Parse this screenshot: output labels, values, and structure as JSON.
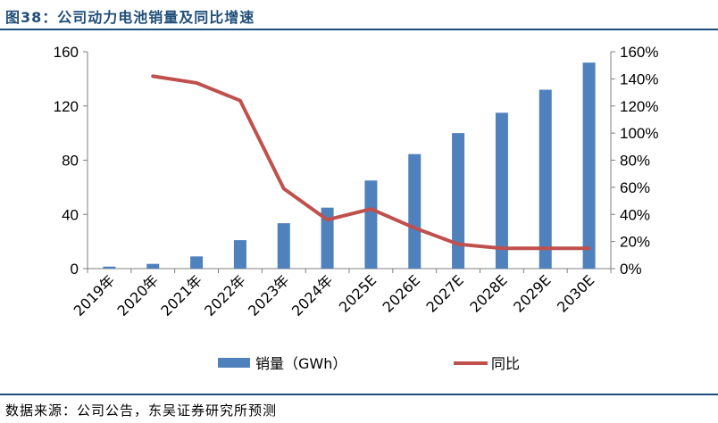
{
  "page": {
    "title": "图38：公司动力电池销量及同比增速",
    "source": "数据来源：公司公告，东吴证券研究所预测"
  },
  "chart_data": {
    "type": "bar",
    "title": "公司动力电池销量及同比增速",
    "categories": [
      "2019年",
      "2020年",
      "2021年",
      "2022年",
      "2023年",
      "2024年",
      "2025E",
      "2026E",
      "2027E",
      "2028E",
      "2029E",
      "2030E"
    ],
    "series": [
      {
        "name": "销量（GWh）",
        "type": "bar",
        "axis": "left",
        "color": "#4f81bd",
        "values": [
          1.5,
          3.5,
          9,
          21,
          33.5,
          45,
          65,
          84.5,
          100,
          115,
          132,
          152
        ]
      },
      {
        "name": "同比",
        "type": "line",
        "axis": "right",
        "color": "#c0504d",
        "values": [
          null,
          142,
          137,
          124,
          59,
          36,
          44,
          30,
          18,
          15,
          15,
          15
        ]
      }
    ],
    "y_left": {
      "min": 0,
      "max": 160,
      "ticks": [
        0,
        40,
        80,
        120,
        160
      ],
      "tick_labels": [
        "0",
        "40",
        "80",
        "120",
        "160"
      ]
    },
    "y_right": {
      "min": 0,
      "max": 160,
      "ticks": [
        0,
        20,
        40,
        60,
        80,
        100,
        120,
        140,
        160
      ],
      "tick_labels": [
        "0%",
        "20%",
        "40%",
        "60%",
        "80%",
        "100%",
        "120%",
        "140%",
        "160%"
      ]
    },
    "legend": {
      "position": "bottom",
      "items": [
        "销量（GWh）",
        "同比"
      ]
    },
    "grid": false
  }
}
